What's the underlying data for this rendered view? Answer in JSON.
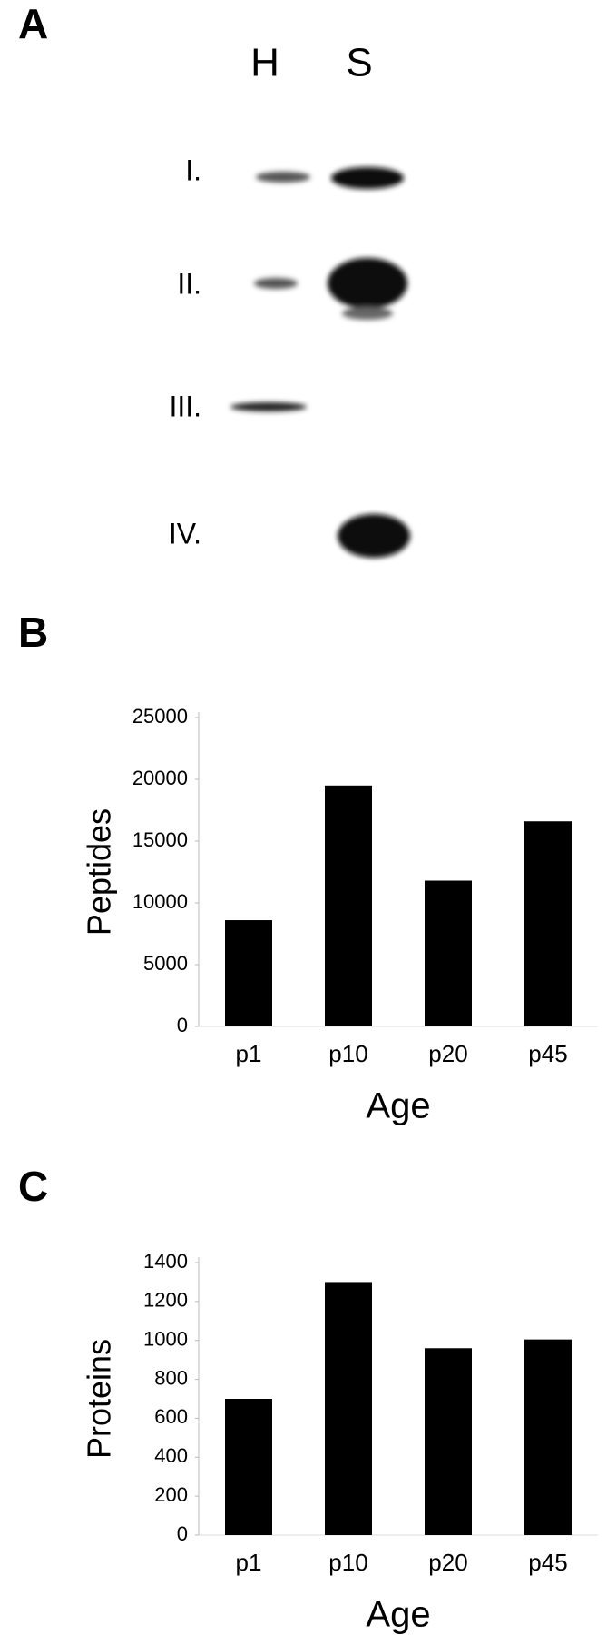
{
  "blot": {
    "label": "A",
    "lanes": [
      "H",
      "S"
    ],
    "rows": [
      "I.",
      "II.",
      "III.",
      "IV."
    ]
  },
  "chart_data": [
    {
      "type": "bar",
      "label": "B",
      "ylabel": "Peptides",
      "xlabel": "Age",
      "categories": [
        "p1",
        "p10",
        "p20",
        "p45"
      ],
      "values": [
        8600,
        19500,
        11800,
        16600
      ],
      "color": "#000000",
      "ylim": [
        0,
        25000
      ],
      "yticks": [
        0,
        5000,
        10000,
        15000,
        20000,
        25000
      ],
      "grid": false
    },
    {
      "type": "bar",
      "label": "C",
      "ylabel": "Proteins",
      "xlabel": "Age",
      "categories": [
        "p1",
        "p10",
        "p20",
        "p45"
      ],
      "values": [
        700,
        1300,
        960,
        1005
      ],
      "color": "#000000",
      "ylim": [
        0,
        1400
      ],
      "yticks": [
        0,
        200,
        400,
        600,
        800,
        1000,
        1200,
        1400
      ],
      "grid": false
    }
  ]
}
